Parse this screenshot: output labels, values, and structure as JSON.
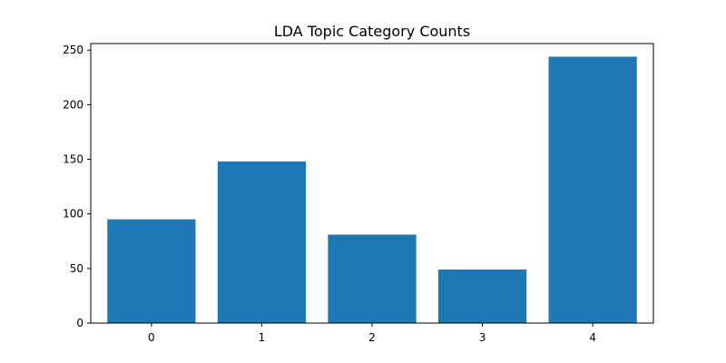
{
  "chart_data": {
    "type": "bar",
    "title": "LDA Topic Category Counts",
    "xlabel": "",
    "ylabel": "",
    "categories": [
      "0",
      "1",
      "2",
      "3",
      "4"
    ],
    "values": [
      95,
      148,
      81,
      49,
      244
    ],
    "ylim": [
      0,
      256
    ],
    "yticks": [
      0,
      50,
      100,
      150,
      200,
      250
    ],
    "bar_color": "#1f77b4",
    "grid": false,
    "legend": null
  }
}
